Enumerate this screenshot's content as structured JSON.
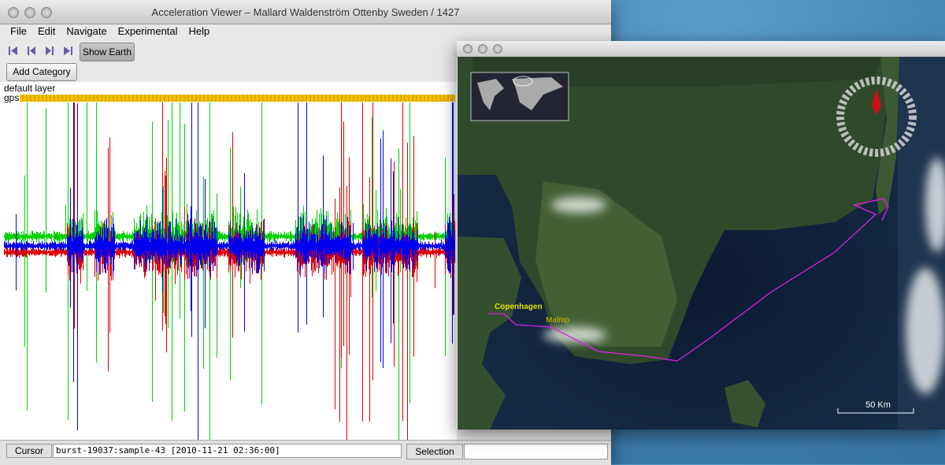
{
  "main_window": {
    "title": "Acceleration Viewer – Mallard Waldenström Ottenby Sweden / 1427",
    "menu": [
      "File",
      "Edit",
      "Navigate",
      "Experimental",
      "Help"
    ],
    "buttons": {
      "show_earth": "Show Earth",
      "add_category": "Add Category"
    },
    "layers": [
      "default layer",
      "gps"
    ],
    "status": {
      "cursor_label": "Cursor",
      "cursor_value": "burst-19037:sample-43 [2010-11-21 02:36:00]",
      "selection_label": "Selection"
    }
  },
  "map_window": {
    "labels": {
      "copenhagen": "Copenhagen",
      "malmo": "Malmo"
    },
    "scale": "50 Km"
  }
}
